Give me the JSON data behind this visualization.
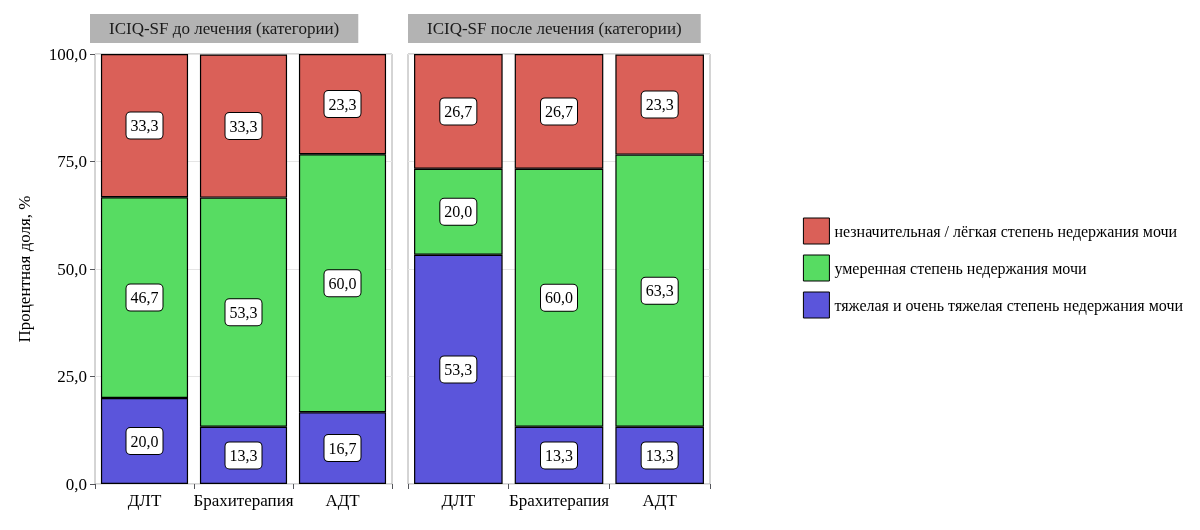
{
  "chart_data": [
    {
      "type": "bar",
      "title": "ICIQ-SF до лечения (категории)",
      "ylabel": "Процентная доля, %",
      "categories": [
        "ДЛТ",
        "Брахитерапия",
        "АДТ"
      ],
      "stacked": true,
      "grid": "y",
      "legend": false,
      "ylim": [
        0,
        100
      ],
      "yticks": [
        {
          "value": 0,
          "label": "0,0"
        },
        {
          "value": 25,
          "label": "25,0"
        },
        {
          "value": 50,
          "label": "50,0"
        },
        {
          "value": 75,
          "label": "75,0"
        },
        {
          "value": 100,
          "label": "100,0"
        }
      ],
      "series": [
        {
          "color": "#5b55db",
          "values": [
            20.0,
            13.3,
            16.7
          ],
          "value_labels": [
            "20,0",
            "13,3",
            "16,7"
          ]
        },
        {
          "color": "#57dc62",
          "values": [
            46.7,
            53.3,
            60.0
          ],
          "value_labels": [
            "46,7",
            "53,3",
            "60,0"
          ]
        },
        {
          "color": "#da6058",
          "values": [
            33.3,
            33.3,
            23.3
          ],
          "value_labels": [
            "33,3",
            "33,3",
            "23,3"
          ]
        }
      ]
    },
    {
      "type": "bar",
      "title": "ICIQ-SF после лечения (категории)",
      "categories": [
        "ДЛТ",
        "Брахитерапия",
        "АДТ"
      ],
      "stacked": true,
      "grid": "y",
      "legend": "right",
      "tick_labels": "x",
      "ylim": [
        0,
        100
      ],
      "yticks": [
        0,
        25,
        50,
        75,
        100
      ],
      "series": [
        {
          "name": "тяжелая и очень тяжелая степень недержания мочи",
          "color": "#5b55db",
          "values": [
            53.3,
            13.3,
            13.3
          ],
          "value_labels": [
            "53,3",
            "13,3",
            "13,3"
          ]
        },
        {
          "name": "умеренная степень недержания мочи",
          "color": "#57dc62",
          "values": [
            20.0,
            60.0,
            63.3
          ],
          "value_labels": [
            "20,0",
            "60,0",
            "63,3"
          ]
        },
        {
          "name": "незначительная / лёгкая степень недержания мочи",
          "color": "#da6058",
          "values": [
            26.7,
            26.7,
            23.3
          ],
          "value_labels": [
            "26,7",
            "26,7",
            "23,3"
          ]
        }
      ]
    }
  ]
}
